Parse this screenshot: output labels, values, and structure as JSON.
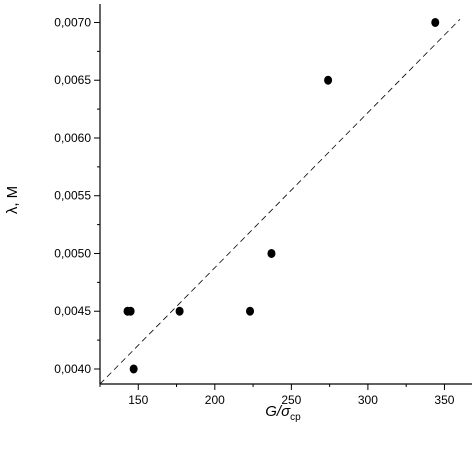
{
  "chart_data": {
    "type": "scatter",
    "xlabel": "G/σ",
    "xlabel_sub": "ср",
    "ylabel": "λ, М",
    "xlim": [
      125,
      368
    ],
    "ylim": [
      0.00387,
      0.00716
    ],
    "x_ticks": [
      150,
      200,
      250,
      300,
      350
    ],
    "x_tick_labels": [
      "150",
      "200",
      "250",
      "300",
      "350"
    ],
    "y_ticks": [
      0.004,
      0.0045,
      0.005,
      0.0055,
      0.006,
      0.0065,
      0.007
    ],
    "y_tick_labels": [
      "0,0040",
      "0,0045",
      "0,0050",
      "0,0055",
      "0,0060",
      "0,0065",
      "0,0070"
    ],
    "grid": false,
    "legend": "none",
    "series": [
      {
        "points": [
          {
            "x": 143,
            "y": 0.0045
          },
          {
            "x": 145,
            "y": 0.0045
          },
          {
            "x": 147,
            "y": 0.004
          },
          {
            "x": 177,
            "y": 0.0045
          },
          {
            "x": 223,
            "y": 0.0045
          },
          {
            "x": 237,
            "y": 0.005
          },
          {
            "x": 274,
            "y": 0.0065
          },
          {
            "x": 344,
            "y": 0.007
          }
        ]
      }
    ],
    "trendline": {
      "style": "dashed",
      "from": {
        "x": 125,
        "y": 0.00387
      },
      "to": {
        "x": 370,
        "y": 0.00716
      }
    }
  }
}
